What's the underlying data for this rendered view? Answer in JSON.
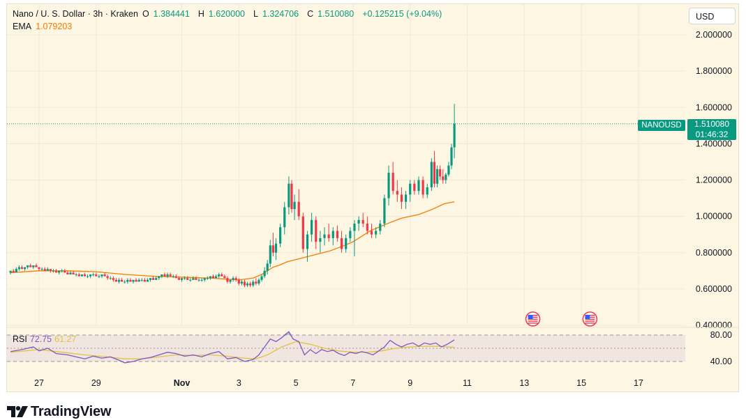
{
  "header": {
    "symbol": "Nano / U. S. Dollar · 3h · Kraken",
    "open_label": "O",
    "open": "1.384441",
    "high_label": "H",
    "high": "1.620000",
    "low_label": "L",
    "low": "1.324706",
    "close_label": "C",
    "close": "1.510080",
    "change": "+0.125215 (+9.04%)",
    "ema_label": "EMA",
    "ema_value": "1.079203",
    "currency": "USD"
  },
  "price_label": {
    "ticker": "NANOUSD",
    "price": "1.510080",
    "countdown": "01:46:32"
  },
  "rsi": {
    "label": "RSI",
    "value": "72.75",
    "ma_value": "61.27"
  },
  "logo": {
    "text": "TradingView"
  },
  "colors": {
    "up": "#089981",
    "down": "#f23645",
    "ema": "#f57c00",
    "rsi": "#7e57c2",
    "rsi_ma": "#e0c341",
    "background": "#fdf6e3"
  },
  "chart_data": {
    "type": "candlestick",
    "y_ticks": [
      "2.000000",
      "1.800000",
      "1.600000",
      "1.400000",
      "1.200000",
      "1.000000",
      "0.800000",
      "0.600000",
      "0.400000"
    ],
    "ylim": [
      0.4,
      2.0
    ],
    "rsi_ticks": [
      "80.00",
      "40.00"
    ],
    "x_ticks": [
      "27",
      "29",
      "Nov",
      "3",
      "5",
      "7",
      "9",
      "11",
      "13",
      "15",
      "17"
    ],
    "x_tick_day_index": [
      0,
      2,
      5,
      7,
      9,
      11,
      13,
      15,
      17,
      19,
      21
    ],
    "ema_points": [
      [
        -1.0,
        0.69
      ],
      [
        0,
        0.7
      ],
      [
        1,
        0.7
      ],
      [
        2,
        0.695
      ],
      [
        3,
        0.68
      ],
      [
        4,
        0.67
      ],
      [
        5,
        0.665
      ],
      [
        6,
        0.66
      ],
      [
        6.5,
        0.655
      ],
      [
        7,
        0.65
      ],
      [
        7.5,
        0.66
      ],
      [
        7.8,
        0.68
      ],
      [
        8.0,
        0.7
      ],
      [
        8.2,
        0.72
      ],
      [
        8.4,
        0.73
      ],
      [
        8.7,
        0.75
      ],
      [
        9.2,
        0.77
      ],
      [
        9.7,
        0.79
      ],
      [
        10.2,
        0.81
      ],
      [
        10.7,
        0.84
      ],
      [
        11.0,
        0.86
      ],
      [
        11.3,
        0.89
      ],
      [
        11.6,
        0.92
      ],
      [
        12.2,
        0.96
      ],
      [
        12.7,
        0.99
      ],
      [
        13.3,
        1.01
      ],
      [
        13.8,
        1.04
      ],
      [
        14.2,
        1.07
      ],
      [
        14.55,
        1.08
      ]
    ],
    "candles": [
      [
        -1.0,
        0.69,
        0.7,
        0.68,
        0.7
      ],
      [
        -0.9,
        0.7,
        0.71,
        0.69,
        0.69
      ],
      [
        -0.8,
        0.69,
        0.72,
        0.69,
        0.71
      ],
      [
        -0.7,
        0.71,
        0.73,
        0.7,
        0.72
      ],
      [
        -0.6,
        0.72,
        0.73,
        0.71,
        0.71
      ],
      [
        -0.5,
        0.71,
        0.72,
        0.7,
        0.72
      ],
      [
        -0.4,
        0.72,
        0.73,
        0.71,
        0.73
      ],
      [
        -0.3,
        0.73,
        0.74,
        0.72,
        0.72
      ],
      [
        -0.2,
        0.72,
        0.73,
        0.71,
        0.73
      ],
      [
        -0.1,
        0.73,
        0.74,
        0.72,
        0.72
      ],
      [
        0.0,
        0.72,
        0.72,
        0.7,
        0.71
      ],
      [
        0.1,
        0.71,
        0.72,
        0.7,
        0.71
      ],
      [
        0.2,
        0.71,
        0.72,
        0.7,
        0.7
      ],
      [
        0.3,
        0.7,
        0.72,
        0.7,
        0.71
      ],
      [
        0.4,
        0.71,
        0.71,
        0.69,
        0.7
      ],
      [
        0.5,
        0.7,
        0.71,
        0.69,
        0.7
      ],
      [
        0.6,
        0.7,
        0.71,
        0.69,
        0.69
      ],
      [
        0.7,
        0.69,
        0.7,
        0.68,
        0.7
      ],
      [
        0.8,
        0.7,
        0.71,
        0.69,
        0.7
      ],
      [
        0.9,
        0.7,
        0.71,
        0.69,
        0.69
      ],
      [
        1.0,
        0.69,
        0.7,
        0.68,
        0.68
      ],
      [
        1.1,
        0.68,
        0.7,
        0.68,
        0.69
      ],
      [
        1.2,
        0.69,
        0.7,
        0.68,
        0.68
      ],
      [
        1.3,
        0.68,
        0.69,
        0.67,
        0.68
      ],
      [
        1.4,
        0.68,
        0.69,
        0.67,
        0.67
      ],
      [
        1.5,
        0.67,
        0.68,
        0.67,
        0.68
      ],
      [
        1.6,
        0.68,
        0.69,
        0.67,
        0.67
      ],
      [
        1.7,
        0.67,
        0.68,
        0.66,
        0.67
      ],
      [
        1.8,
        0.67,
        0.68,
        0.66,
        0.68
      ],
      [
        1.9,
        0.68,
        0.69,
        0.67,
        0.68
      ],
      [
        2.0,
        0.68,
        0.69,
        0.67,
        0.67
      ],
      [
        2.1,
        0.67,
        0.68,
        0.66,
        0.67
      ],
      [
        2.2,
        0.67,
        0.68,
        0.66,
        0.68
      ],
      [
        2.3,
        0.68,
        0.69,
        0.67,
        0.67
      ],
      [
        2.4,
        0.67,
        0.68,
        0.65,
        0.66
      ],
      [
        2.5,
        0.66,
        0.67,
        0.65,
        0.66
      ],
      [
        2.6,
        0.66,
        0.67,
        0.64,
        0.65
      ],
      [
        2.7,
        0.65,
        0.66,
        0.64,
        0.64
      ],
      [
        2.8,
        0.64,
        0.66,
        0.63,
        0.65
      ],
      [
        2.9,
        0.65,
        0.66,
        0.64,
        0.64
      ],
      [
        3.0,
        0.64,
        0.65,
        0.63,
        0.64
      ],
      [
        3.1,
        0.64,
        0.66,
        0.63,
        0.65
      ],
      [
        3.2,
        0.65,
        0.66,
        0.64,
        0.64
      ],
      [
        3.3,
        0.64,
        0.65,
        0.63,
        0.65
      ],
      [
        3.4,
        0.65,
        0.66,
        0.64,
        0.64
      ],
      [
        3.5,
        0.64,
        0.66,
        0.64,
        0.65
      ],
      [
        3.6,
        0.65,
        0.66,
        0.64,
        0.65
      ],
      [
        3.7,
        0.65,
        0.66,
        0.64,
        0.64
      ],
      [
        3.8,
        0.64,
        0.66,
        0.64,
        0.65
      ],
      [
        3.9,
        0.65,
        0.66,
        0.64,
        0.66
      ],
      [
        4.0,
        0.66,
        0.67,
        0.65,
        0.65
      ],
      [
        4.1,
        0.65,
        0.67,
        0.65,
        0.66
      ],
      [
        4.2,
        0.66,
        0.67,
        0.65,
        0.67
      ],
      [
        4.3,
        0.67,
        0.68,
        0.66,
        0.68
      ],
      [
        4.4,
        0.68,
        0.69,
        0.67,
        0.67
      ],
      [
        4.5,
        0.67,
        0.69,
        0.66,
        0.68
      ],
      [
        4.6,
        0.68,
        0.69,
        0.67,
        0.67
      ],
      [
        4.7,
        0.67,
        0.68,
        0.66,
        0.67
      ],
      [
        4.8,
        0.67,
        0.68,
        0.66,
        0.66
      ],
      [
        4.9,
        0.66,
        0.67,
        0.65,
        0.65
      ],
      [
        5.0,
        0.65,
        0.66,
        0.64,
        0.66
      ],
      [
        5.1,
        0.66,
        0.67,
        0.65,
        0.66
      ],
      [
        5.2,
        0.66,
        0.67,
        0.65,
        0.65
      ],
      [
        5.3,
        0.65,
        0.66,
        0.64,
        0.65
      ],
      [
        5.4,
        0.65,
        0.67,
        0.65,
        0.66
      ],
      [
        5.5,
        0.66,
        0.67,
        0.65,
        0.65
      ],
      [
        5.6,
        0.65,
        0.66,
        0.64,
        0.65
      ],
      [
        5.7,
        0.65,
        0.66,
        0.64,
        0.65
      ],
      [
        5.8,
        0.65,
        0.66,
        0.64,
        0.66
      ],
      [
        5.9,
        0.66,
        0.67,
        0.65,
        0.66
      ],
      [
        6.0,
        0.66,
        0.67,
        0.65,
        0.67
      ],
      [
        6.1,
        0.67,
        0.68,
        0.66,
        0.66
      ],
      [
        6.2,
        0.66,
        0.68,
        0.66,
        0.67
      ],
      [
        6.3,
        0.67,
        0.69,
        0.66,
        0.68
      ],
      [
        6.4,
        0.68,
        0.69,
        0.67,
        0.67
      ],
      [
        6.5,
        0.67,
        0.68,
        0.66,
        0.66
      ],
      [
        6.6,
        0.66,
        0.67,
        0.63,
        0.64
      ],
      [
        6.7,
        0.64,
        0.65,
        0.63,
        0.65
      ],
      [
        6.8,
        0.65,
        0.67,
        0.64,
        0.66
      ],
      [
        6.9,
        0.66,
        0.67,
        0.64,
        0.65
      ],
      [
        7.0,
        0.65,
        0.66,
        0.62,
        0.63
      ],
      [
        7.1,
        0.63,
        0.65,
        0.62,
        0.64
      ],
      [
        7.2,
        0.64,
        0.65,
        0.61,
        0.62
      ],
      [
        7.3,
        0.62,
        0.64,
        0.61,
        0.63
      ],
      [
        7.4,
        0.63,
        0.64,
        0.61,
        0.62
      ],
      [
        7.5,
        0.62,
        0.65,
        0.61,
        0.64
      ],
      [
        7.6,
        0.64,
        0.66,
        0.62,
        0.63
      ],
      [
        7.7,
        0.63,
        0.66,
        0.62,
        0.65
      ],
      [
        7.8,
        0.65,
        0.68,
        0.64,
        0.67
      ],
      [
        7.9,
        0.67,
        0.72,
        0.66,
        0.7
      ],
      [
        8.0,
        0.7,
        0.76,
        0.68,
        0.74
      ],
      [
        8.1,
        0.74,
        0.87,
        0.72,
        0.84
      ],
      [
        8.2,
        0.84,
        0.91,
        0.78,
        0.8
      ],
      [
        8.3,
        0.8,
        0.88,
        0.76,
        0.85
      ],
      [
        8.45,
        0.85,
        0.96,
        0.83,
        0.94
      ],
      [
        8.6,
        0.94,
        1.08,
        0.9,
        1.05
      ],
      [
        8.75,
        1.05,
        1.22,
        1.01,
        1.18
      ],
      [
        8.85,
        1.18,
        1.2,
        1.02,
        1.04
      ],
      [
        8.95,
        1.04,
        1.12,
        0.98,
        1.08
      ],
      [
        9.1,
        1.08,
        1.15,
        0.98,
        1.0
      ],
      [
        9.25,
        1.0,
        1.02,
        0.8,
        0.82
      ],
      [
        9.4,
        0.82,
        0.92,
        0.75,
        0.9
      ],
      [
        9.55,
        0.9,
        1.02,
        0.86,
        0.98
      ],
      [
        9.7,
        0.98,
        1.0,
        0.82,
        0.86
      ],
      [
        9.85,
        0.86,
        0.92,
        0.8,
        0.88
      ],
      [
        10.0,
        0.88,
        0.94,
        0.84,
        0.9
      ],
      [
        10.15,
        0.9,
        0.96,
        0.86,
        0.88
      ],
      [
        10.3,
        0.88,
        0.94,
        0.84,
        0.92
      ],
      [
        10.45,
        0.92,
        0.95,
        0.86,
        0.88
      ],
      [
        10.6,
        0.88,
        0.92,
        0.8,
        0.82
      ],
      [
        10.75,
        0.82,
        0.9,
        0.8,
        0.88
      ],
      [
        10.9,
        0.88,
        0.94,
        0.86,
        0.92
      ],
      [
        11.05,
        0.92,
        0.98,
        0.78,
        0.96
      ],
      [
        11.2,
        0.96,
        1.0,
        0.92,
        0.98
      ],
      [
        11.35,
        0.98,
        1.02,
        0.94,
        0.96
      ],
      [
        11.5,
        0.96,
        1.0,
        0.9,
        0.92
      ],
      [
        11.65,
        0.92,
        0.96,
        0.88,
        0.9
      ],
      [
        11.8,
        0.9,
        0.94,
        0.88,
        0.92
      ],
      [
        11.95,
        0.92,
        0.98,
        0.9,
        0.96
      ],
      [
        12.1,
        0.96,
        1.12,
        0.94,
        1.1
      ],
      [
        12.25,
        1.1,
        1.28,
        1.06,
        1.24
      ],
      [
        12.4,
        1.24,
        1.3,
        1.12,
        1.14
      ],
      [
        12.55,
        1.14,
        1.2,
        1.08,
        1.12
      ],
      [
        12.7,
        1.12,
        1.16,
        1.04,
        1.08
      ],
      [
        12.85,
        1.08,
        1.14,
        1.04,
        1.12
      ],
      [
        13.0,
        1.12,
        1.2,
        1.08,
        1.18
      ],
      [
        13.15,
        1.18,
        1.2,
        1.12,
        1.14
      ],
      [
        13.3,
        1.14,
        1.22,
        1.12,
        1.2
      ],
      [
        13.45,
        1.2,
        1.22,
        1.1,
        1.12
      ],
      [
        13.6,
        1.12,
        1.18,
        1.1,
        1.16
      ],
      [
        13.75,
        1.16,
        1.32,
        1.14,
        1.3
      ],
      [
        13.85,
        1.3,
        1.36,
        1.16,
        1.18
      ],
      [
        13.95,
        1.18,
        1.28,
        1.16,
        1.26
      ],
      [
        14.05,
        1.26,
        1.28,
        1.2,
        1.22
      ],
      [
        14.15,
        1.22,
        1.26,
        1.18,
        1.2
      ],
      [
        14.25,
        1.2,
        1.24,
        1.18,
        1.23
      ],
      [
        14.35,
        1.23,
        1.3,
        1.22,
        1.28
      ],
      [
        14.45,
        1.28,
        1.4,
        1.26,
        1.38
      ],
      [
        14.55,
        1.38,
        1.62,
        1.32,
        1.51
      ]
    ],
    "rsi_points": [
      [
        -1.0,
        55
      ],
      [
        -0.6,
        58
      ],
      [
        -0.2,
        62
      ],
      [
        0.0,
        56
      ],
      [
        0.3,
        60
      ],
      [
        0.6,
        52
      ],
      [
        1.0,
        50
      ],
      [
        1.3,
        47
      ],
      [
        1.6,
        44
      ],
      [
        1.9,
        48
      ],
      [
        2.2,
        45
      ],
      [
        2.5,
        47
      ],
      [
        2.8,
        42
      ],
      [
        3.0,
        38
      ],
      [
        3.3,
        40
      ],
      [
        3.6,
        44
      ],
      [
        3.9,
        46
      ],
      [
        4.2,
        50
      ],
      [
        4.5,
        54
      ],
      [
        4.8,
        52
      ],
      [
        5.1,
        48
      ],
      [
        5.4,
        50
      ],
      [
        5.7,
        47
      ],
      [
        6.0,
        52
      ],
      [
        6.3,
        55
      ],
      [
        6.6,
        44
      ],
      [
        6.9,
        46
      ],
      [
        7.2,
        40
      ],
      [
        7.5,
        43
      ],
      [
        7.7,
        50
      ],
      [
        7.9,
        62
      ],
      [
        8.1,
        74
      ],
      [
        8.3,
        70
      ],
      [
        8.5,
        76
      ],
      [
        8.75,
        85
      ],
      [
        8.9,
        74
      ],
      [
        9.1,
        70
      ],
      [
        9.3,
        50
      ],
      [
        9.5,
        58
      ],
      [
        9.7,
        52
      ],
      [
        9.9,
        58
      ],
      [
        10.1,
        55
      ],
      [
        10.3,
        57
      ],
      [
        10.5,
        52
      ],
      [
        10.7,
        49
      ],
      [
        10.9,
        54
      ],
      [
        11.1,
        52
      ],
      [
        11.3,
        55
      ],
      [
        11.5,
        53
      ],
      [
        11.7,
        50
      ],
      [
        11.9,
        56
      ],
      [
        12.1,
        62
      ],
      [
        12.3,
        72
      ],
      [
        12.5,
        66
      ],
      [
        12.7,
        62
      ],
      [
        12.9,
        66
      ],
      [
        13.1,
        68
      ],
      [
        13.3,
        63
      ],
      [
        13.5,
        68
      ],
      [
        13.7,
        66
      ],
      [
        13.9,
        68
      ],
      [
        14.1,
        62
      ],
      [
        14.3,
        66
      ],
      [
        14.55,
        72.75
      ]
    ],
    "rsi_ma_points": [
      [
        -1.0,
        54
      ],
      [
        0.0,
        58
      ],
      [
        0.8,
        54
      ],
      [
        1.6,
        50
      ],
      [
        2.4,
        47
      ],
      [
        3.0,
        44
      ],
      [
        3.6,
        44
      ],
      [
        4.2,
        47
      ],
      [
        4.8,
        50
      ],
      [
        5.4,
        49
      ],
      [
        6.0,
        50
      ],
      [
        6.6,
        48
      ],
      [
        7.2,
        45
      ],
      [
        7.6,
        44
      ],
      [
        8.0,
        50
      ],
      [
        8.5,
        62
      ],
      [
        9.0,
        70
      ],
      [
        9.5,
        66
      ],
      [
        10.0,
        60
      ],
      [
        10.5,
        56
      ],
      [
        11.0,
        54
      ],
      [
        11.5,
        54
      ],
      [
        12.0,
        56
      ],
      [
        12.5,
        60
      ],
      [
        13.0,
        62
      ],
      [
        13.5,
        63
      ],
      [
        14.0,
        63
      ],
      [
        14.55,
        61.27
      ]
    ],
    "events": [
      {
        "day": 17.3
      },
      {
        "day": 19.3
      }
    ]
  }
}
